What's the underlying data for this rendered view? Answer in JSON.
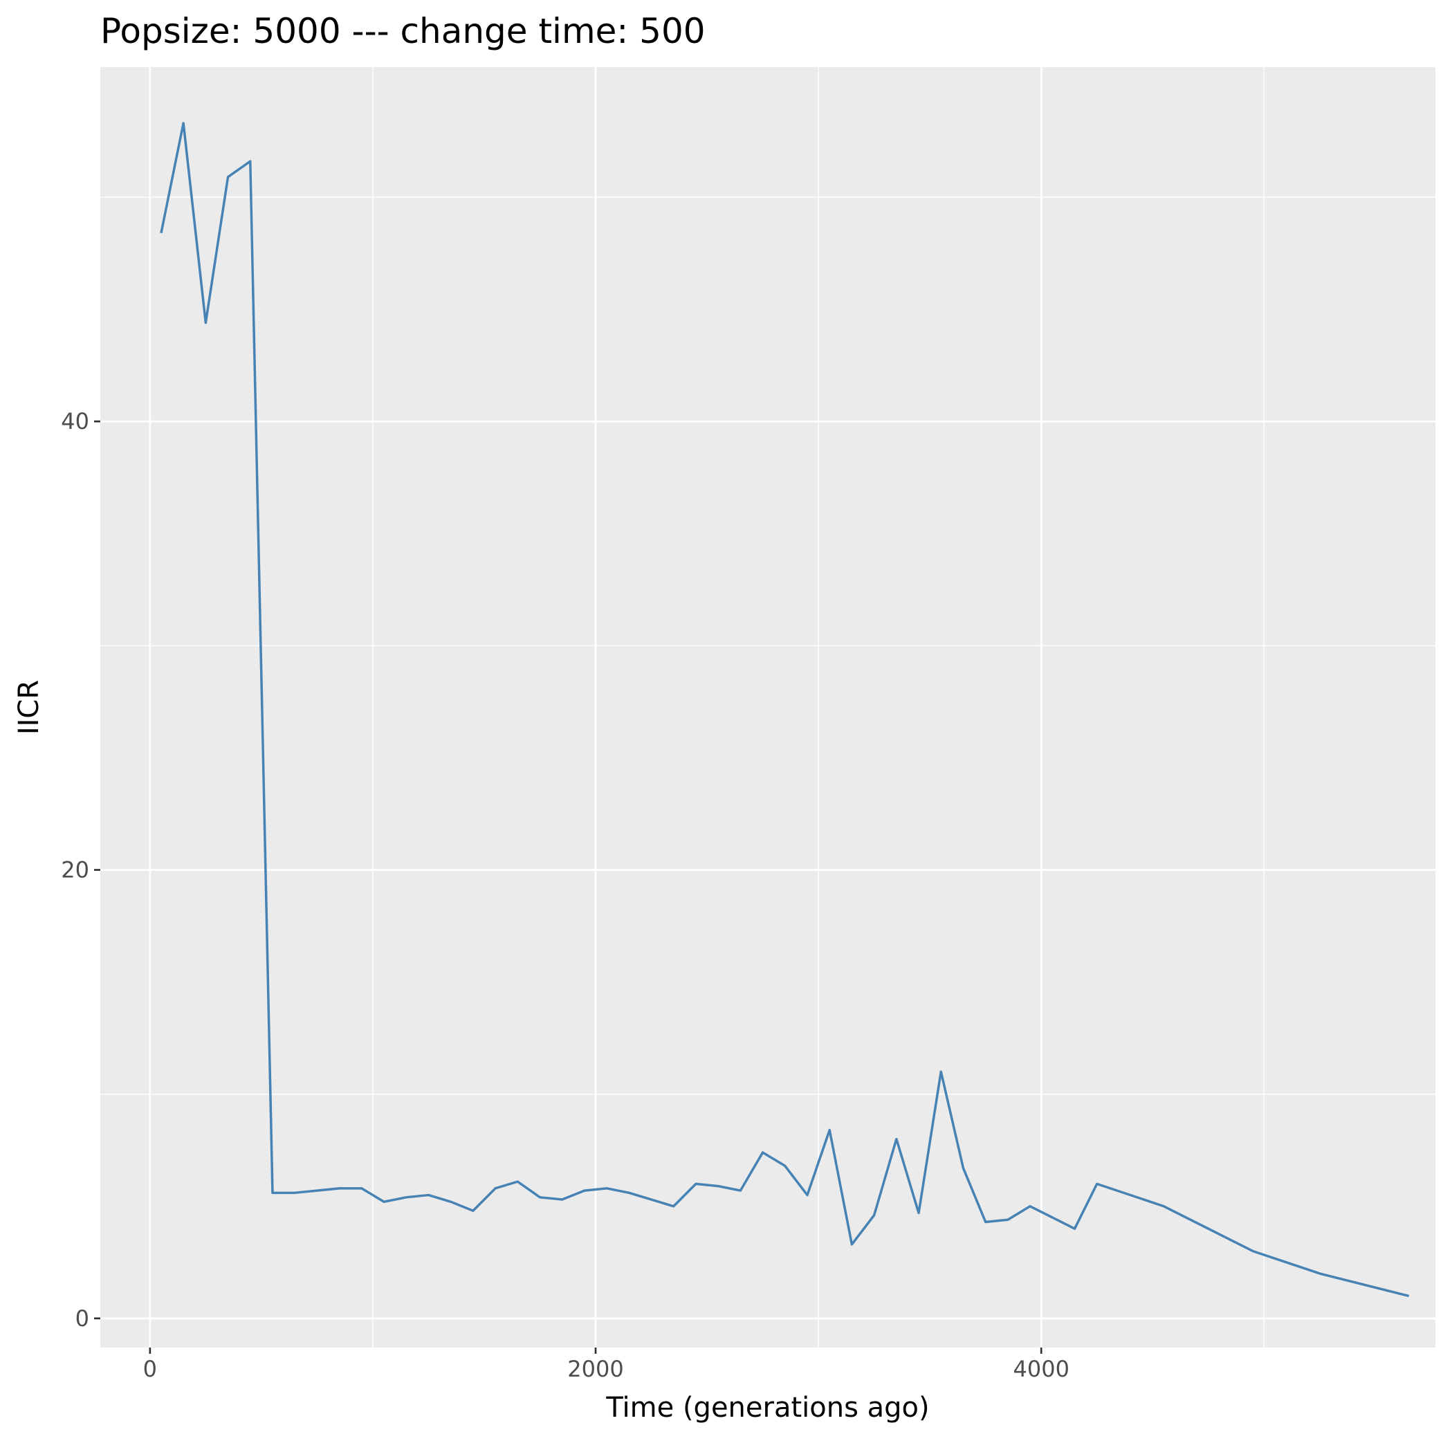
{
  "chart_data": {
    "type": "line",
    "title": "Popsize:  5000  --- change time:  500",
    "xlabel": "Time (generations ago)",
    "ylabel": "IICR",
    "xlim": [
      -223,
      5769
    ],
    "ylim": [
      -1.3,
      55.8
    ],
    "x_ticks": [
      0,
      2000,
      4000
    ],
    "x_tick_labels": [
      "0",
      "2000",
      "4000"
    ],
    "y_ticks": [
      0,
      20,
      40
    ],
    "y_tick_labels": [
      "0",
      "20",
      "40"
    ],
    "grid": true,
    "panel_background": "#ebebeb",
    "grid_color": "#ffffff",
    "line_color": "#4682b4",
    "series": [
      {
        "x": [
          50,
          150,
          250,
          350,
          450,
          550,
          650,
          750,
          850,
          950,
          1050,
          1150,
          1250,
          1350,
          1450,
          1550,
          1650,
          1750,
          1850,
          1950,
          2050,
          2150,
          2250,
          2350,
          2450,
          2550,
          2650,
          2750,
          2850,
          2950,
          3050,
          3150,
          3250,
          3350,
          3450,
          3550,
          3650,
          3750,
          3850,
          3950,
          4050,
          4150,
          4250,
          4550,
          4950,
          5250,
          5650
        ],
        "y": [
          48.4,
          53.3,
          44.4,
          50.9,
          51.6,
          5.6,
          5.6,
          5.7,
          5.8,
          5.8,
          5.2,
          5.4,
          5.5,
          5.2,
          4.8,
          5.8,
          6.1,
          5.4,
          5.3,
          5.7,
          5.8,
          5.6,
          5.3,
          5.0,
          6.0,
          5.9,
          5.7,
          7.4,
          6.8,
          5.5,
          8.4,
          3.3,
          4.6,
          8.0,
          4.7,
          11.0,
          6.7,
          4.3,
          4.4,
          5.0,
          4.5,
          4.0,
          6.0,
          5.0,
          3.0,
          2.0,
          1.0
        ]
      }
    ]
  }
}
